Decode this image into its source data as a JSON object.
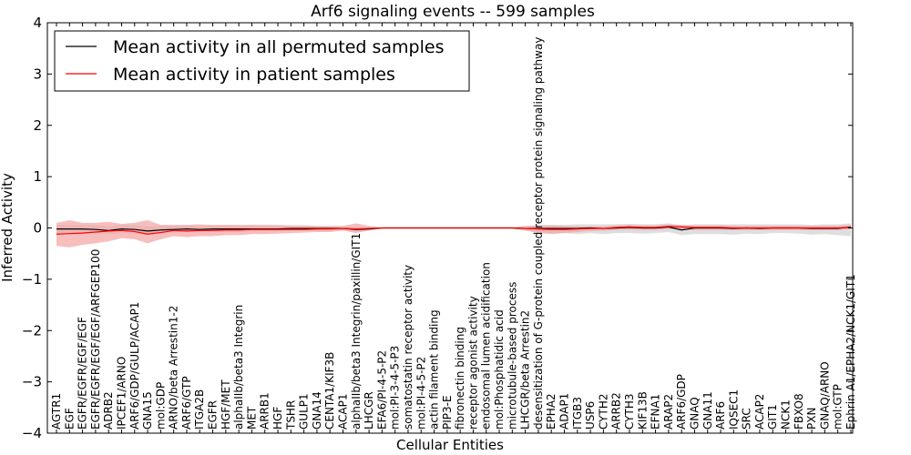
{
  "chart_data": {
    "type": "line",
    "title": "Arf6 signaling events -- 599 samples",
    "xlabel": "Cellular Entities",
    "ylabel": "Inferred Activity",
    "ylim": [
      -4,
      4
    ],
    "yticks": [
      -4,
      -3,
      -2,
      -1,
      0,
      1,
      2,
      3,
      4
    ],
    "grid": false,
    "legend_position": "top-left",
    "colors": {
      "permuted": "#000000",
      "patient": "#ff0000",
      "patient_band": "#f4a3a3",
      "permuted_band": "#d3d3d3"
    },
    "categories": [
      "AGTR1",
      "EGF",
      "EGFR/EGFR/EGF/EGF",
      "EGFR/EGFR/EGF/EGF/ARFGEP100",
      "ADRB2",
      "IPCEF1/ARNO",
      "ARF6/GDP/GULP/ACAP1",
      "GNA15",
      "mol:GDP",
      "ARNO/beta Arrestin1-2",
      "ARF6/GTP",
      "ITGA2B",
      "EGFR",
      "HGF/MET",
      "alphaIIb/beta3 Integrin",
      "MET",
      "ARRB1",
      "HGF",
      "TSHR",
      "GULP1",
      "GNA14",
      "CENTA1/KIF3B",
      "ACAP1",
      "alphaIIb/beta3 Integrin/paxillin/GIT1",
      "LHCGR",
      "EFA6/PI-4-5-P2",
      "mol:PI-3-4-5-P3",
      "somatostatin receptor activity",
      "mol:PI-4-5-P2",
      "actin filament binding",
      "PIP3-E",
      "fibronectin binding",
      "receptor agonist activity",
      "endosomal lumen acidification",
      "mol:Phosphatidic acid",
      "microtubule-based process",
      "LHCGR/beta Arrestin2",
      "desensitization of G-protein coupled receptor protein signaling pathway",
      "EPHA2",
      "ADAP1",
      "ITGB3",
      "USP6",
      "CYTH2",
      "ARRB2",
      "CYTH3",
      "KIF13B",
      "EFNA1",
      "ARAP2",
      "ARF6/GDP",
      "GNAQ",
      "GNA11",
      "ARF6",
      "IQSEC1",
      "SRC",
      "ACAP2",
      "GIT1",
      "NCK1",
      "FBXO8",
      "PXN",
      "GNAQ/ARNO",
      "mol:GTP",
      "Ephrin A1/EPHA2/NCK1/GIT1"
    ],
    "series": [
      {
        "name": "Mean activity in all permuted samples",
        "values": [
          -0.02,
          -0.02,
          -0.02,
          -0.03,
          -0.05,
          -0.02,
          -0.03,
          -0.06,
          -0.04,
          -0.03,
          -0.02,
          -0.03,
          -0.02,
          -0.02,
          -0.02,
          -0.02,
          -0.02,
          -0.02,
          -0.01,
          -0.01,
          -0.01,
          -0.01,
          -0.01,
          -0.03,
          -0.02,
          0,
          0,
          0,
          0,
          0,
          0,
          0,
          0,
          0,
          0,
          0,
          -0.01,
          -0.01,
          -0.01,
          -0.01,
          -0.01,
          0,
          -0.01,
          0,
          0.01,
          0,
          0,
          0.02,
          -0.04,
          0,
          0,
          0,
          -0.01,
          0,
          -0.01,
          0,
          0,
          0,
          -0.01,
          -0.01,
          -0.01,
          0.02
        ],
        "band_lower": [
          -0.1,
          -0.1,
          -0.1,
          -0.1,
          -0.12,
          -0.1,
          -0.11,
          -0.14,
          -0.1,
          -0.09,
          -0.08,
          -0.09,
          -0.08,
          -0.08,
          -0.08,
          -0.07,
          -0.07,
          -0.07,
          -0.05,
          -0.05,
          -0.05,
          -0.05,
          -0.05,
          -0.07,
          -0.04,
          -0.01,
          -0.01,
          -0.01,
          -0.01,
          -0.01,
          -0.01,
          -0.01,
          -0.01,
          -0.01,
          -0.01,
          -0.01,
          -0.05,
          -0.08,
          -0.1,
          -0.1,
          -0.12,
          -0.1,
          -0.12,
          -0.1,
          -0.1,
          -0.11,
          -0.1,
          -0.08,
          -0.14,
          -0.12,
          -0.12,
          -0.12,
          -0.13,
          -0.11,
          -0.12,
          -0.1,
          -0.1,
          -0.11,
          -0.13,
          -0.12,
          -0.14,
          -0.16
        ],
        "band_upper": [
          0.06,
          0.06,
          0.06,
          0.05,
          0.03,
          0.06,
          0.05,
          0.02,
          0.04,
          0.04,
          0.04,
          0.03,
          0.04,
          0.04,
          0.04,
          0.04,
          0.03,
          0.03,
          0.03,
          0.03,
          0.03,
          0.03,
          0.03,
          0.02,
          0.01,
          0.01,
          0.01,
          0.01,
          0.01,
          0.01,
          0.01,
          0.01,
          0.01,
          0.01,
          0.01,
          0.01,
          0.03,
          0.05,
          0.06,
          0.06,
          0.07,
          0.07,
          0.07,
          0.07,
          0.08,
          0.07,
          0.07,
          0.09,
          0.05,
          0.07,
          0.07,
          0.07,
          0.07,
          0.07,
          0.07,
          0.07,
          0.07,
          0.07,
          0.06,
          0.07,
          0.07,
          0.09
        ]
      },
      {
        "name": "Mean activity in patient samples",
        "values": [
          -0.12,
          -0.11,
          -0.1,
          -0.08,
          -0.06,
          -0.05,
          -0.07,
          -0.12,
          -0.09,
          -0.05,
          -0.06,
          -0.05,
          -0.05,
          -0.04,
          -0.04,
          -0.03,
          -0.03,
          -0.03,
          -0.03,
          -0.03,
          -0.02,
          -0.02,
          -0.01,
          -0.02,
          -0.01,
          0,
          0,
          0,
          0,
          0,
          0,
          0,
          0,
          0,
          0,
          0,
          -0.01,
          -0.02,
          -0.03,
          -0.03,
          -0.02,
          -0.01,
          -0.01,
          0.01,
          0.02,
          0.01,
          0.01,
          0.03,
          0.02,
          0.01,
          0.01,
          0.01,
          0,
          0,
          0,
          0,
          0,
          0,
          0,
          0,
          0,
          0.01
        ],
        "band_lower": [
          -0.35,
          -0.38,
          -0.33,
          -0.3,
          -0.26,
          -0.2,
          -0.22,
          -0.3,
          -0.22,
          -0.16,
          -0.18,
          -0.16,
          -0.16,
          -0.14,
          -0.14,
          -0.12,
          -0.12,
          -0.11,
          -0.1,
          -0.09,
          -0.08,
          -0.08,
          -0.05,
          -0.1,
          -0.05,
          -0.01,
          -0.01,
          -0.01,
          -0.01,
          -0.01,
          -0.01,
          -0.01,
          -0.01,
          -0.01,
          -0.01,
          -0.01,
          -0.05,
          -0.1,
          -0.12,
          -0.1,
          -0.08,
          -0.06,
          -0.05,
          -0.04,
          -0.03,
          -0.04,
          -0.04,
          -0.02,
          -0.03,
          -0.04,
          -0.04,
          -0.04,
          -0.04,
          -0.04,
          -0.04,
          -0.04,
          -0.04,
          -0.04,
          -0.04,
          -0.04,
          -0.04,
          -0.02
        ],
        "band_upper": [
          0.1,
          0.15,
          0.1,
          0.1,
          0.12,
          0.08,
          0.1,
          0.15,
          0.06,
          0.06,
          0.06,
          0.07,
          0.06,
          0.06,
          0.06,
          0.06,
          0.06,
          0.06,
          0.05,
          0.05,
          0.04,
          0.04,
          0.04,
          0.09,
          0.04,
          0.01,
          0.01,
          0.01,
          0.01,
          0.01,
          0.01,
          0.01,
          0.01,
          0.01,
          0.01,
          0.01,
          0.04,
          0.05,
          0.05,
          0.04,
          0.03,
          0.03,
          0.03,
          0.05,
          0.06,
          0.05,
          0.05,
          0.07,
          0.06,
          0.05,
          0.05,
          0.05,
          0.04,
          0.04,
          0.04,
          0.04,
          0.04,
          0.04,
          0.04,
          0.04,
          0.04,
          0.06
        ]
      }
    ]
  }
}
